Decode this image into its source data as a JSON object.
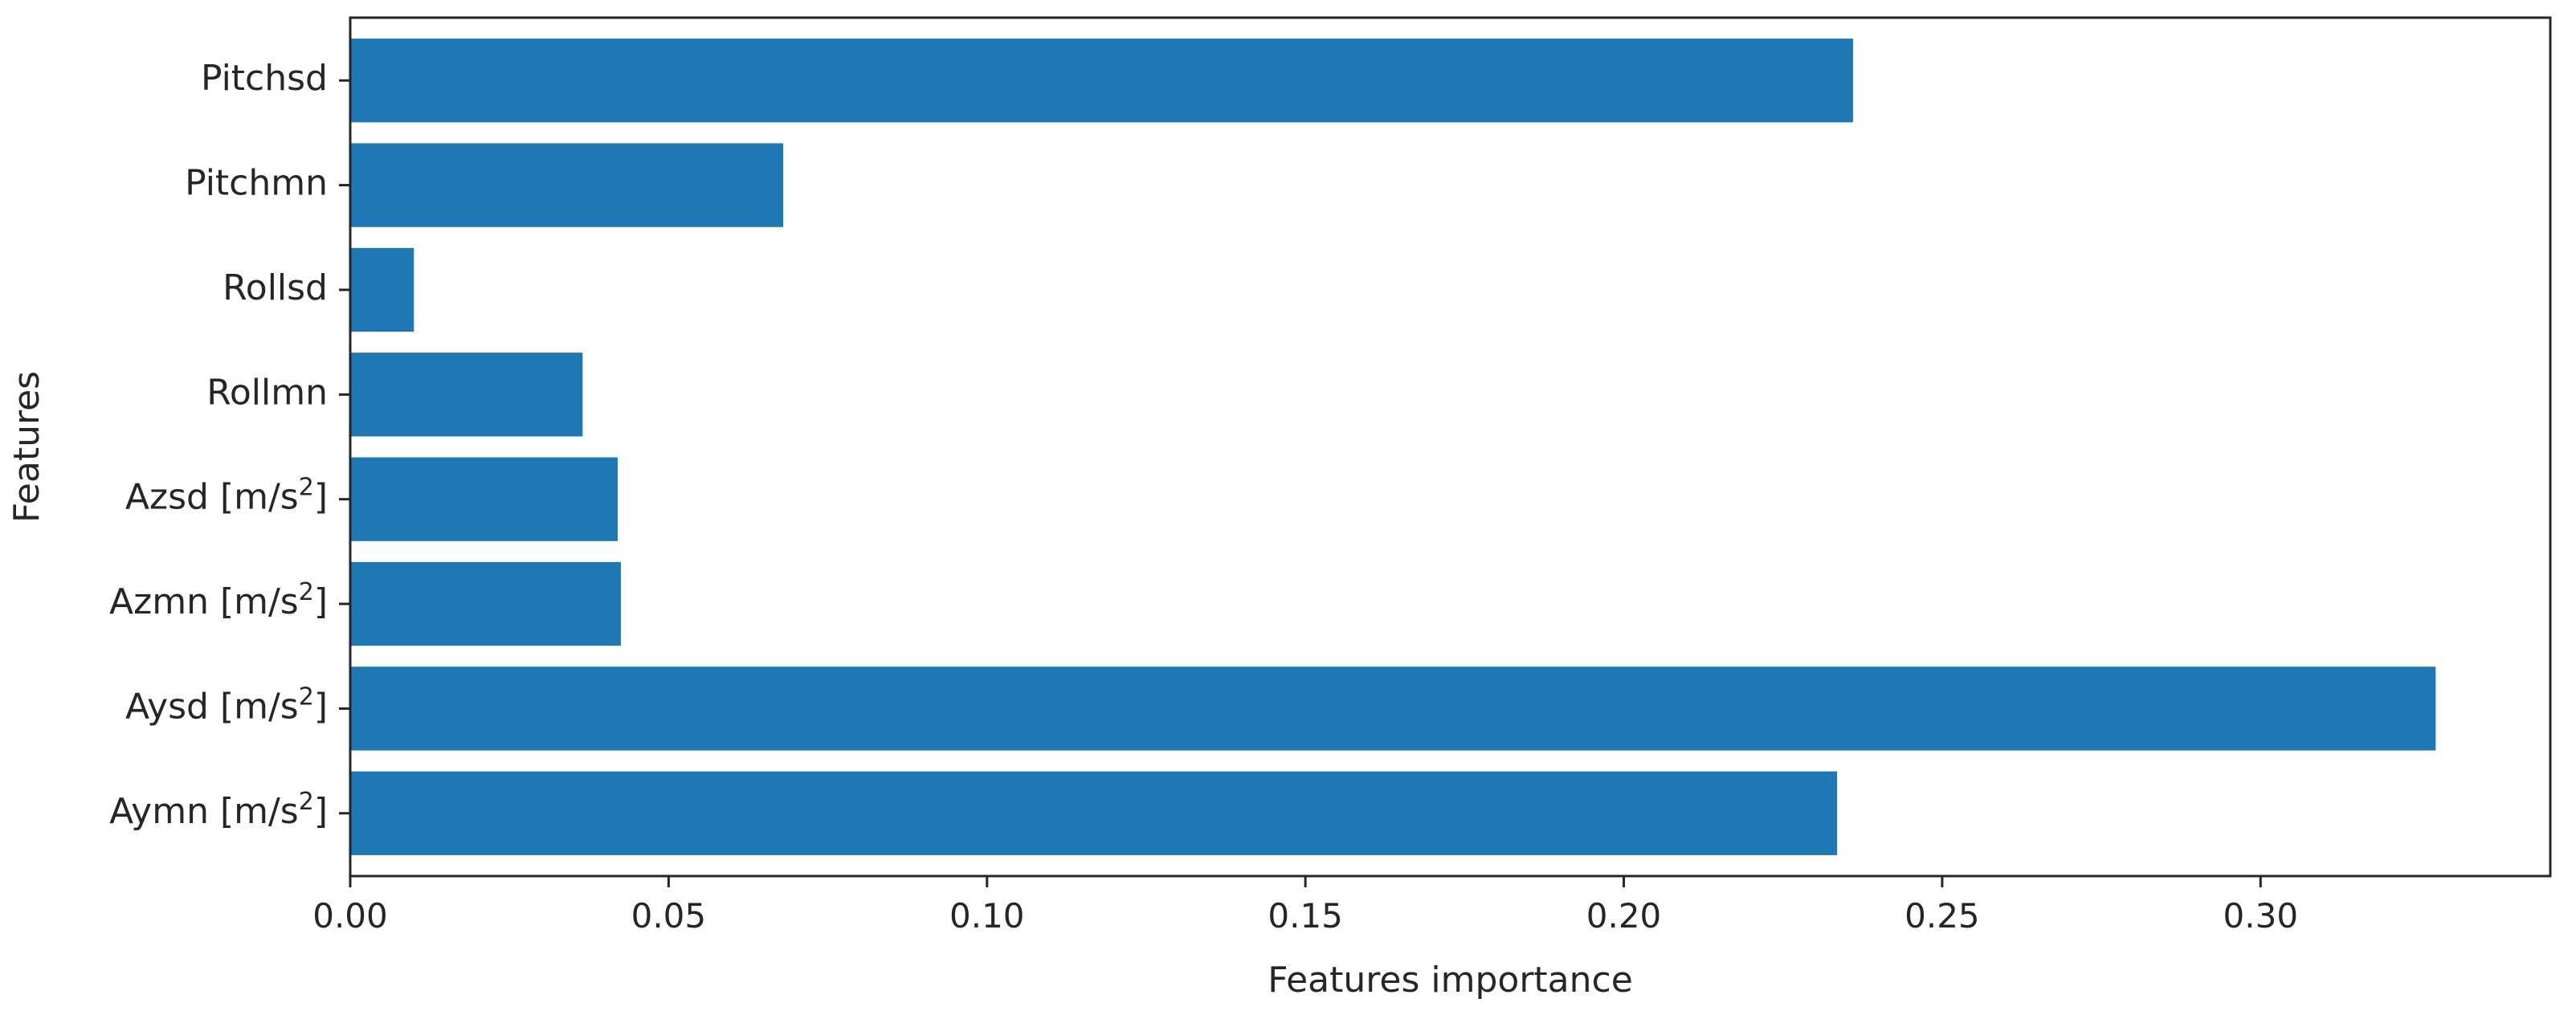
{
  "chart_data": {
    "type": "bar",
    "orientation": "horizontal",
    "title": "",
    "xlabel": "Features importance",
    "ylabel": "Features",
    "xlim": [
      0.0,
      0.3455
    ],
    "xticks": [
      "0.00",
      "0.05",
      "0.10",
      "0.15",
      "0.20",
      "0.25",
      "0.30"
    ],
    "categories": [
      {
        "base": "Aymn [m/s",
        "sup": "2",
        "close": "]"
      },
      {
        "base": "Aysd [m/s",
        "sup": "2",
        "close": "]"
      },
      {
        "base": "Azmn [m/s",
        "sup": "2",
        "close": "]"
      },
      {
        "base": "Azsd [m/s",
        "sup": "2",
        "close": "]"
      },
      {
        "base": "Rollmn",
        "sup": "",
        "close": ""
      },
      {
        "base": "Rollsd",
        "sup": "",
        "close": ""
      },
      {
        "base": "Pitchmn",
        "sup": "",
        "close": ""
      },
      {
        "base": "Pitchsd",
        "sup": "",
        "close": ""
      }
    ],
    "values": [
      0.2335,
      0.3275,
      0.0425,
      0.042,
      0.0365,
      0.01,
      0.068,
      0.236
    ],
    "bar_color": "#1f77b4",
    "grid": false,
    "legend": "none"
  }
}
